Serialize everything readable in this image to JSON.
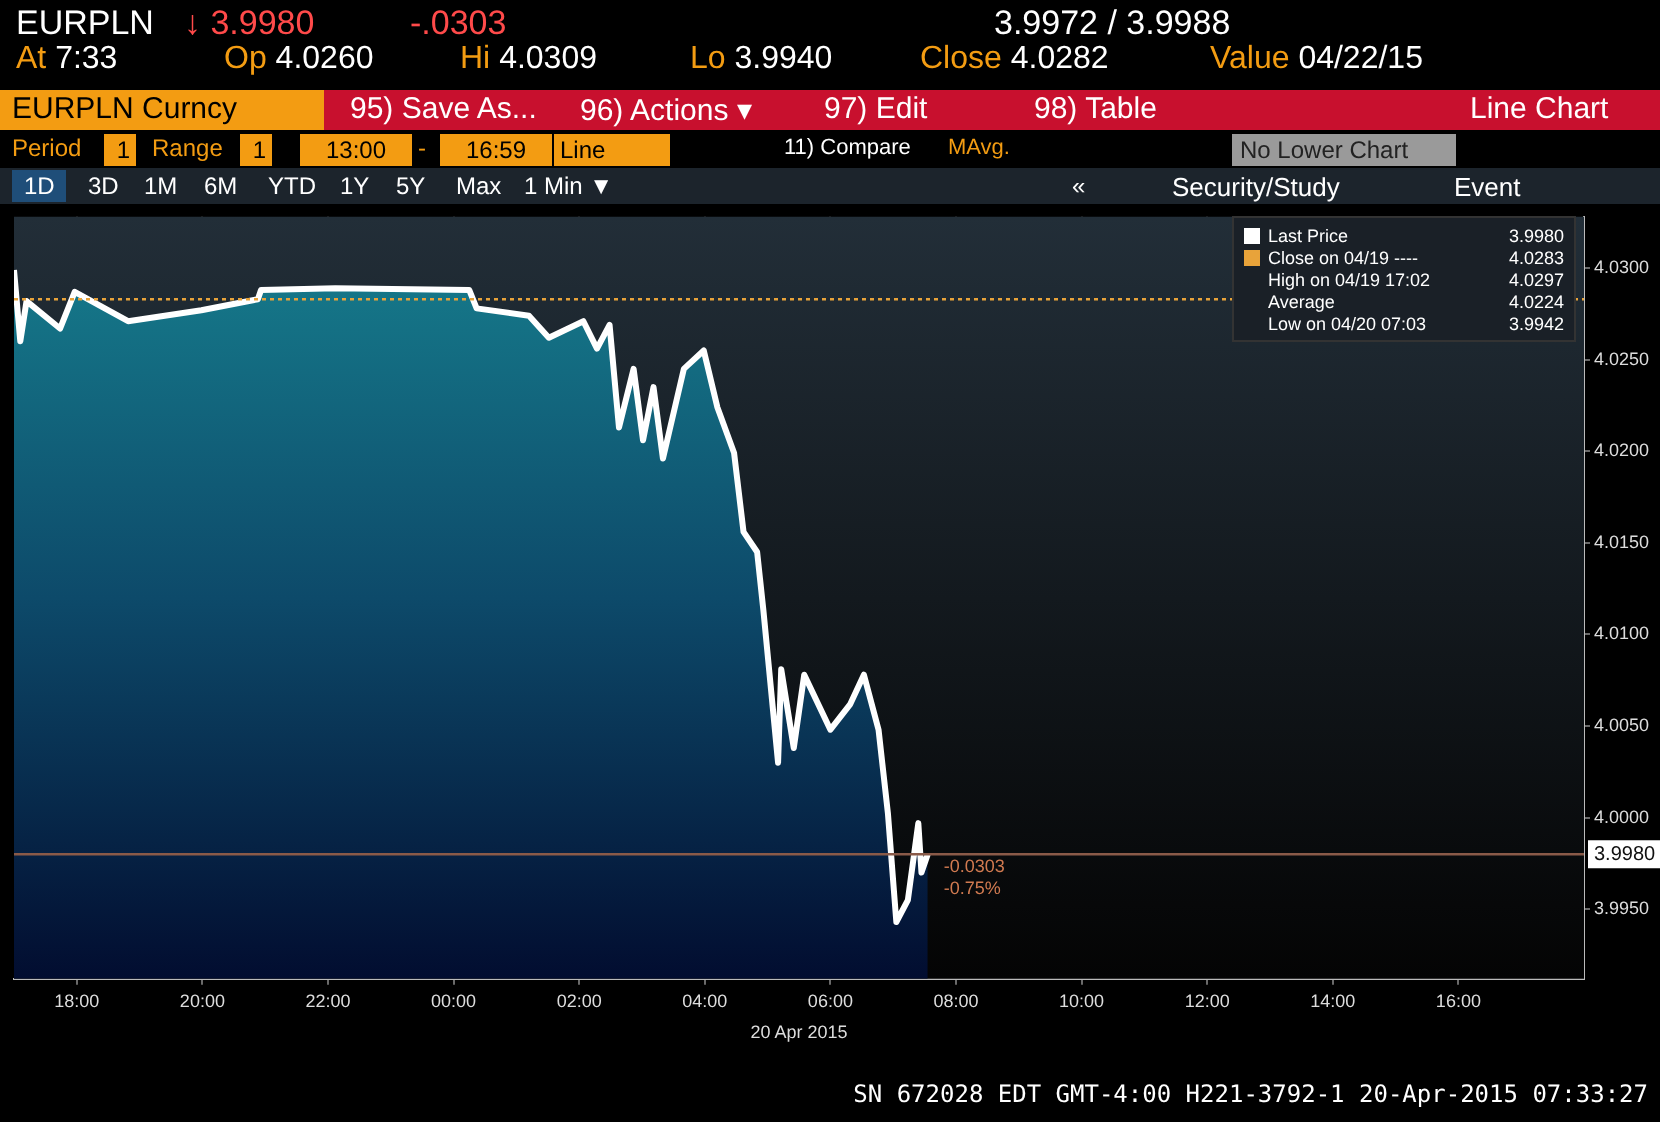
{
  "chart_data": {
    "type": "area",
    "series": [
      {
        "name": "Last Price",
        "color": "#ffffff",
        "x": [
          "2015-04-19T17:00",
          "2015-04-19T17:06",
          "2015-04-19T17:12",
          "2015-04-19T17:44",
          "2015-04-19T17:58",
          "2015-04-19T18:49",
          "2015-04-19T19:59",
          "2015-04-19T20:53",
          "2015-04-19T20:56",
          "2015-04-19T22:07",
          "2015-04-20T00:15",
          "2015-04-20T00:22",
          "2015-04-20T01:12",
          "2015-04-20T01:31",
          "2015-04-20T02:04",
          "2015-04-20T02:17",
          "2015-04-20T02:29",
          "2015-04-20T02:38",
          "2015-04-20T02:52",
          "2015-04-20T03:01",
          "2015-04-20T03:11",
          "2015-04-20T03:20",
          "2015-04-20T03:40",
          "2015-04-20T03:59",
          "2015-04-20T04:12",
          "2015-04-20T04:28",
          "2015-04-20T04:37",
          "2015-04-20T04:50",
          "2015-04-20T04:56",
          "2015-04-20T05:10",
          "2015-04-20T05:13",
          "2015-04-20T05:25",
          "2015-04-20T05:35",
          "2015-04-20T06:00",
          "2015-04-20T06:19",
          "2015-04-20T06:32",
          "2015-04-20T06:46",
          "2015-04-20T06:55",
          "2015-04-20T07:03",
          "2015-04-20T07:14",
          "2015-04-20T07:24",
          "2015-04-20T07:27",
          "2015-04-20T07:33"
        ],
        "values": [
          4.0299,
          4.026,
          4.0282,
          4.0267,
          4.0287,
          4.0271,
          4.0277,
          4.0283,
          4.0288,
          4.0289,
          4.0288,
          4.0278,
          4.0274,
          4.0262,
          4.0271,
          4.0256,
          4.0269,
          4.0213,
          4.0245,
          4.0206,
          4.0235,
          4.0196,
          4.0245,
          4.0255,
          4.0224,
          4.0199,
          4.0156,
          4.0145,
          4.0113,
          4.003,
          4.0081,
          4.0038,
          4.0078,
          4.0048,
          4.0062,
          4.0078,
          4.0048,
          4.0002,
          3.9943,
          3.9955,
          3.9997,
          3.997,
          3.998
        ]
      }
    ],
    "xlim": [
      "2015-04-19T17:00",
      "2015-04-20T18:00"
    ],
    "xticks": [
      {
        "value": "2015-04-19T18:00",
        "label": "18:00"
      },
      {
        "value": "2015-04-19T20:00",
        "label": "20:00"
      },
      {
        "value": "2015-04-19T22:00",
        "label": "22:00"
      },
      {
        "value": "2015-04-20T00:00",
        "label": "00:00"
      },
      {
        "value": "2015-04-20T02:00",
        "label": "02:00"
      },
      {
        "value": "2015-04-20T04:00",
        "label": "04:00"
      },
      {
        "value": "2015-04-20T06:00",
        "label": "06:00"
      },
      {
        "value": "2015-04-20T08:00",
        "label": "08:00"
      },
      {
        "value": "2015-04-20T10:00",
        "label": "10:00"
      },
      {
        "value": "2015-04-20T12:00",
        "label": "12:00"
      },
      {
        "value": "2015-04-20T14:00",
        "label": "14:00"
      },
      {
        "value": "2015-04-20T16:00",
        "label": "16:00"
      }
    ],
    "ylim": [
      3.9912,
      4.0328
    ],
    "yticks": [
      {
        "value": 3.995,
        "label": "3.9950"
      },
      {
        "value": 4.0,
        "label": "4.0000"
      },
      {
        "value": 4.005,
        "label": "4.0050"
      },
      {
        "value": 4.01,
        "label": "4.0100"
      },
      {
        "value": 4.015,
        "label": "4.0150"
      },
      {
        "value": 4.02,
        "label": "4.0200"
      },
      {
        "value": 4.025,
        "label": "4.0250"
      },
      {
        "value": 4.03,
        "label": "4.0300"
      }
    ],
    "xlabel": "20 Apr 2015",
    "grid": true,
    "legend": "top right",
    "ref_lines": [
      {
        "axis": "y",
        "value": 4.0283,
        "label": "Close on 04/19 ----",
        "color": "#e8a33a",
        "line_style": "dotted"
      },
      {
        "axis": "y",
        "value": 3.998,
        "label": "3.9980",
        "color": "#8a5a48",
        "line_style": "solid"
      }
    ],
    "annotations": [
      "EURPLN",
      "↓ 3.9980",
      "-.0303",
      "3.9972 / 3.9988",
      "At 7:33",
      "Op 4.0260",
      "Hi 4.0309",
      "Lo 3.9940",
      "Close 4.0282",
      "Value 04/22/15",
      "EURPLN Curncy",
      "95) Save As...",
      "96) Actions ▾",
      "97) Edit",
      "98) Table",
      "Line Chart",
      "Period",
      "1",
      "Range",
      "1",
      "13:00",
      "-",
      "16:59",
      "Line",
      "11) Compare",
      "MAvg.",
      "No Lower Chart",
      "1D",
      "3D",
      "1M",
      "6M",
      "YTD",
      "1Y",
      "5Y",
      "Max",
      "1 Min ▼",
      "«",
      "Security/Study",
      "Event",
      "3.9980",
      "High on 04/19 17:02",
      "4.0297",
      "Average",
      "4.0224",
      "Low on 04/20 07:03",
      "3.9942",
      {
        "text": "-0.0303",
        "x": "2015-04-20T07:33",
        "y": 3.998
      },
      {
        "text": "-0.75%",
        "x": "2015-04-20T07:33",
        "y": 3.998
      },
      "SN 672028 EDT  GMT-4:00 H221-3792-1 20-Apr-2015 07:33:27",
      "4.0283"
    ]
  }
}
